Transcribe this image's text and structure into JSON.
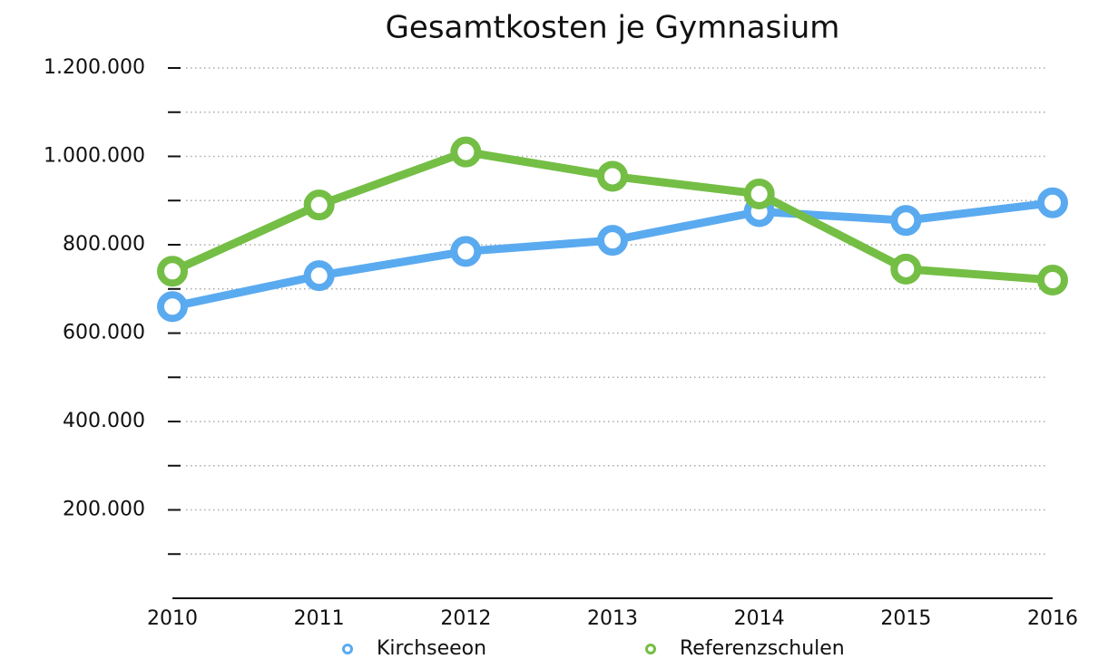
{
  "chart_data": {
    "type": "line",
    "title": "Gesamtkosten je Gymnasium",
    "categories": [
      "2010",
      "2011",
      "2012",
      "2013",
      "2014",
      "2015",
      "2016"
    ],
    "series": [
      {
        "name": "Kirchseeon",
        "color": "#5aaaf0",
        "values": [
          660000,
          730000,
          785000,
          810000,
          875000,
          855000,
          895000
        ]
      },
      {
        "name": "Referenzschulen",
        "color": "#74be45",
        "values": [
          740000,
          890000,
          1010000,
          955000,
          915000,
          745000,
          720000
        ]
      }
    ],
    "ylim": [
      0,
      1200000
    ],
    "yticks": [
      {
        "value": 200000,
        "label": "200.000"
      },
      {
        "value": 400000,
        "label": "400.000"
      },
      {
        "value": 600000,
        "label": "600.000"
      },
      {
        "value": 800000,
        "label": "800.000"
      },
      {
        "value": 1000000,
        "label": "1.000.000"
      },
      {
        "value": 1200000,
        "label": "1.200.000"
      }
    ],
    "yminor_ticks": [
      100000,
      300000,
      500000,
      700000,
      900000,
      1100000
    ],
    "grid": true
  }
}
